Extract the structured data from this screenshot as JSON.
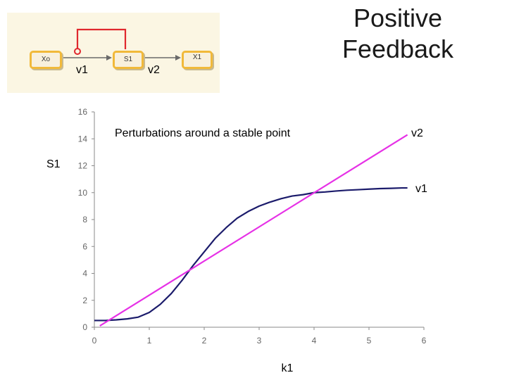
{
  "slide": {
    "title_line1": "Positive",
    "title_line2": "Feedback"
  },
  "diagram": {
    "nodes": {
      "x0": "Xo",
      "s1": "S1",
      "x1": "X1"
    },
    "labels": {
      "v1": "v1",
      "v2": "v2"
    },
    "colors": {
      "feedback": "#e0282e",
      "node_border": "#f1b93a",
      "panel": "#fbf6e3"
    }
  },
  "chart_data": {
    "type": "line",
    "annotation": "Perturbations around a stable point",
    "xlabel": "k1",
    "ylabel": "S1",
    "xlim": [
      0,
      6
    ],
    "ylim": [
      0,
      16
    ],
    "xticks": [
      0,
      1,
      2,
      3,
      4,
      5,
      6
    ],
    "yticks": [
      0,
      2,
      4,
      6,
      8,
      10,
      12,
      14,
      16
    ],
    "grid": false,
    "series": [
      {
        "name": "v1",
        "color": "#1b1b6b",
        "x": [
          0,
          0.2,
          0.4,
          0.6,
          0.8,
          1.0,
          1.2,
          1.4,
          1.6,
          1.8,
          2.0,
          2.2,
          2.4,
          2.6,
          2.8,
          3.0,
          3.2,
          3.4,
          3.6,
          3.8,
          4.0,
          4.2,
          4.4,
          4.6,
          4.8,
          5.0,
          5.2,
          5.4,
          5.6,
          5.7
        ],
        "values": [
          0.5,
          0.5,
          0.55,
          0.62,
          0.75,
          1.1,
          1.7,
          2.5,
          3.5,
          4.6,
          5.6,
          6.6,
          7.4,
          8.1,
          8.6,
          9.0,
          9.3,
          9.55,
          9.75,
          9.85,
          10.0,
          10.05,
          10.12,
          10.18,
          10.22,
          10.26,
          10.3,
          10.32,
          10.35,
          10.35
        ]
      },
      {
        "name": "v2",
        "color": "#e631e6",
        "x": [
          0.1,
          5.7
        ],
        "values": [
          0.1,
          14.3
        ]
      }
    ]
  }
}
